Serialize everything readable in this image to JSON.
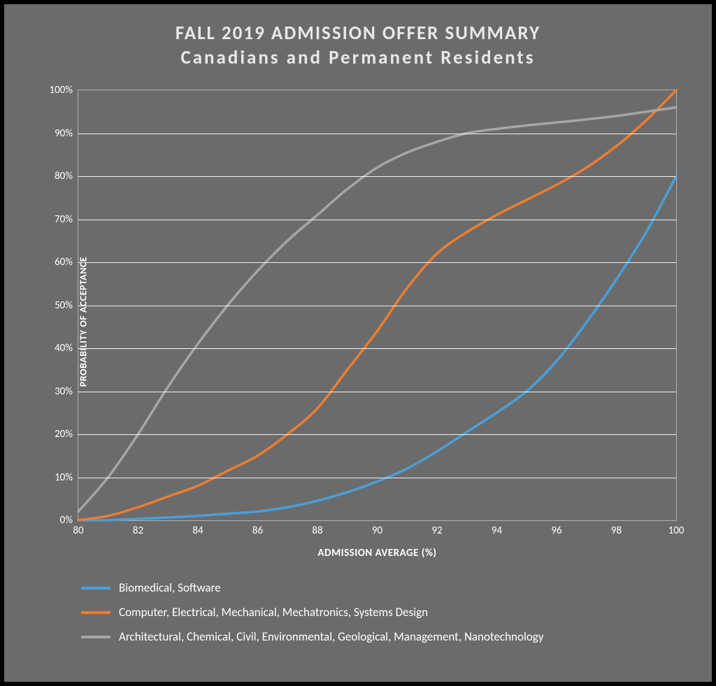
{
  "chart": {
    "type": "line",
    "title_line1": "FALL 2019 ADMISSION OFFER SUMMARY",
    "title_line2": "Canadians and Permanent Residents",
    "title_color": "#e8e8e8",
    "title_fontsize": 27,
    "background_color": "#6b6b6b",
    "outer_border_color": "#000000",
    "plot_border_color": "#b0b0b0",
    "grid_color": "#f0f0f0",
    "axis_label_color": "#ffffff",
    "tick_label_color": "#ffffff",
    "tick_fontsize": 15,
    "axis_label_fontsize": 15,
    "xlabel": "ADMISSION AVERAGE (%)",
    "ylabel": "PROBABILITY OF ACCEPTANCE",
    "xlim": [
      80,
      100
    ],
    "ylim": [
      0,
      100
    ],
    "xtick_step": 2,
    "ytick_step": 10,
    "xticks": [
      80,
      82,
      84,
      86,
      88,
      90,
      92,
      94,
      96,
      98,
      100
    ],
    "yticks": [
      0,
      10,
      20,
      30,
      40,
      50,
      60,
      70,
      80,
      90,
      100
    ],
    "ytick_suffix": "%",
    "line_width": 3.5,
    "series": [
      {
        "name": "Biomedical, Software",
        "color": "#4a9fd8",
        "x": [
          80,
          81,
          82,
          83,
          84,
          85,
          86,
          87,
          88,
          89,
          90,
          91,
          92,
          93,
          94,
          95,
          96,
          97,
          98,
          99,
          100
        ],
        "y": [
          0,
          0,
          0.3,
          0.6,
          1,
          1.5,
          2,
          3,
          4.5,
          6.5,
          9,
          12,
          16,
          20.5,
          25,
          30,
          37,
          46,
          56,
          67,
          80
        ]
      },
      {
        "name": "Computer, Electrical, Mechanical, Mechatronics, Systems Design",
        "color": "#ed7d31",
        "x": [
          80,
          81,
          82,
          83,
          84,
          85,
          86,
          87,
          88,
          89,
          90,
          91,
          92,
          93,
          94,
          95,
          96,
          97,
          98,
          99,
          100
        ],
        "y": [
          0,
          1,
          3,
          5.5,
          8,
          11.5,
          15,
          20,
          26,
          35,
          44,
          54,
          62,
          67,
          71,
          74.5,
          78,
          82,
          87,
          93,
          100
        ]
      },
      {
        "name": "Architectural, Chemical, Civil, Environmental, Geological, Management, Nanotechnology",
        "color": "#a6a6a6",
        "x": [
          80,
          81,
          82,
          83,
          84,
          85,
          86,
          87,
          88,
          89,
          90,
          91,
          92,
          93,
          94,
          95,
          96,
          97,
          98,
          99,
          100
        ],
        "y": [
          2,
          10,
          20,
          31,
          41,
          50,
          58,
          65,
          71,
          77,
          82,
          85.5,
          88,
          90,
          91,
          91.8,
          92.5,
          93.2,
          94,
          95,
          96
        ]
      }
    ],
    "legend": {
      "position": "bottom",
      "fontsize": 17,
      "label_color": "#ffffff",
      "swatch_width": 42,
      "swatch_height": 4
    }
  }
}
